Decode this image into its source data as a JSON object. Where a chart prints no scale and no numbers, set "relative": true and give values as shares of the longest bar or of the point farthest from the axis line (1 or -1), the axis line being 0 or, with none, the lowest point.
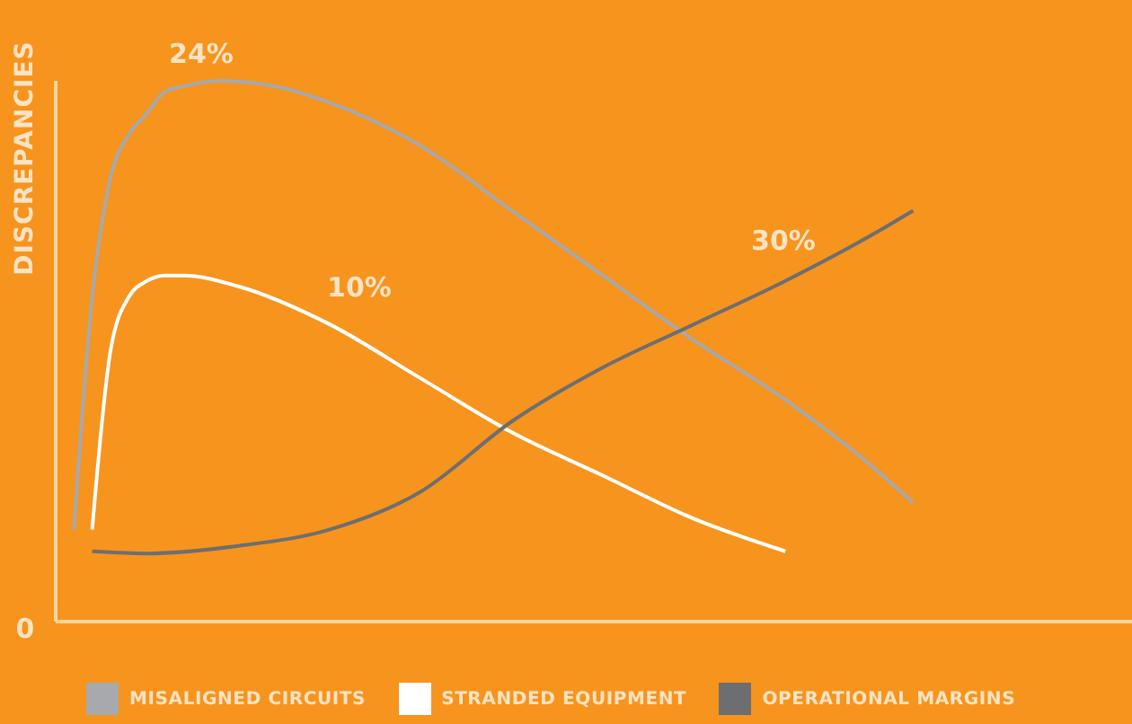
{
  "chart_data": {
    "type": "line",
    "relative": true,
    "ylabel": "DISCREPANCIES",
    "legend": "bottom",
    "marker": "none",
    "line_style": "solid",
    "categories": [
      null,
      null,
      null,
      null,
      null,
      null,
      null,
      null,
      null,
      null,
      null,
      null,
      null,
      null,
      null,
      null,
      null,
      null,
      null,
      null,
      null,
      null,
      null,
      null,
      null,
      null,
      null,
      null,
      null,
      null,
      null,
      null,
      null,
      null,
      null,
      null,
      null,
      null,
      null,
      null,
      null,
      null,
      null,
      null,
      null,
      null,
      null,
      null,
      null,
      null,
      null,
      null,
      null,
      null,
      null,
      null,
      null,
      null,
      null,
      null
    ],
    "series": [
      {
        "name": "MISALIGNED CIRCUITS",
        "color": "#a7a9ac",
        "values": [
          null,
          0.17,
          0.6,
          0.82,
          0.9,
          0.94,
          0.98,
          0.99,
          null,
          1,
          null,
          null,
          0.99,
          null,
          null,
          0.96,
          null,
          null,
          null,
          null,
          0.88,
          null,
          null,
          null,
          null,
          0.76,
          null,
          null,
          null,
          null,
          0.64,
          null,
          null,
          null,
          null,
          0.52,
          null,
          null,
          null,
          null,
          0.41,
          null,
          null,
          null,
          null,
          0.28,
          null,
          0.22,
          null,
          null,
          null,
          null,
          null,
          null,
          null,
          null,
          null,
          null,
          null,
          null
        ]
      },
      {
        "name": "STRANDED EQUIPMENT",
        "color": "#ffffff",
        "values": [
          null,
          null,
          0.17,
          0.5,
          0.6,
          0.63,
          0.64,
          0.64,
          null,
          null,
          0.62,
          null,
          null,
          null,
          null,
          0.55,
          null,
          null,
          null,
          null,
          0.45,
          null,
          null,
          null,
          null,
          0.35,
          null,
          null,
          null,
          null,
          0.27,
          null,
          null,
          null,
          null,
          0.19,
          null,
          null,
          null,
          null,
          0.13,
          null,
          null,
          null,
          null,
          null,
          null,
          null,
          null,
          null,
          null,
          null,
          null,
          null,
          null,
          null,
          null,
          null,
          null,
          null
        ]
      },
      {
        "name": "OPERATIONAL MARGINS",
        "color": "#6d6e71",
        "values": [
          null,
          null,
          0.13,
          null,
          null,
          0.126,
          null,
          null,
          null,
          null,
          0.14,
          null,
          null,
          null,
          null,
          0.17,
          null,
          null,
          null,
          null,
          0.24,
          null,
          null,
          null,
          null,
          0.37,
          null,
          null,
          null,
          null,
          0.47,
          null,
          null,
          null,
          null,
          0.55,
          null,
          null,
          null,
          null,
          0.63,
          null,
          null,
          null,
          null,
          0.72,
          null,
          0.76,
          null,
          null,
          null,
          null,
          null,
          null,
          null,
          null,
          null,
          null,
          null,
          null
        ]
      }
    ],
    "annotations": [
      "24%",
      "10%",
      "30%",
      "0"
    ]
  }
}
